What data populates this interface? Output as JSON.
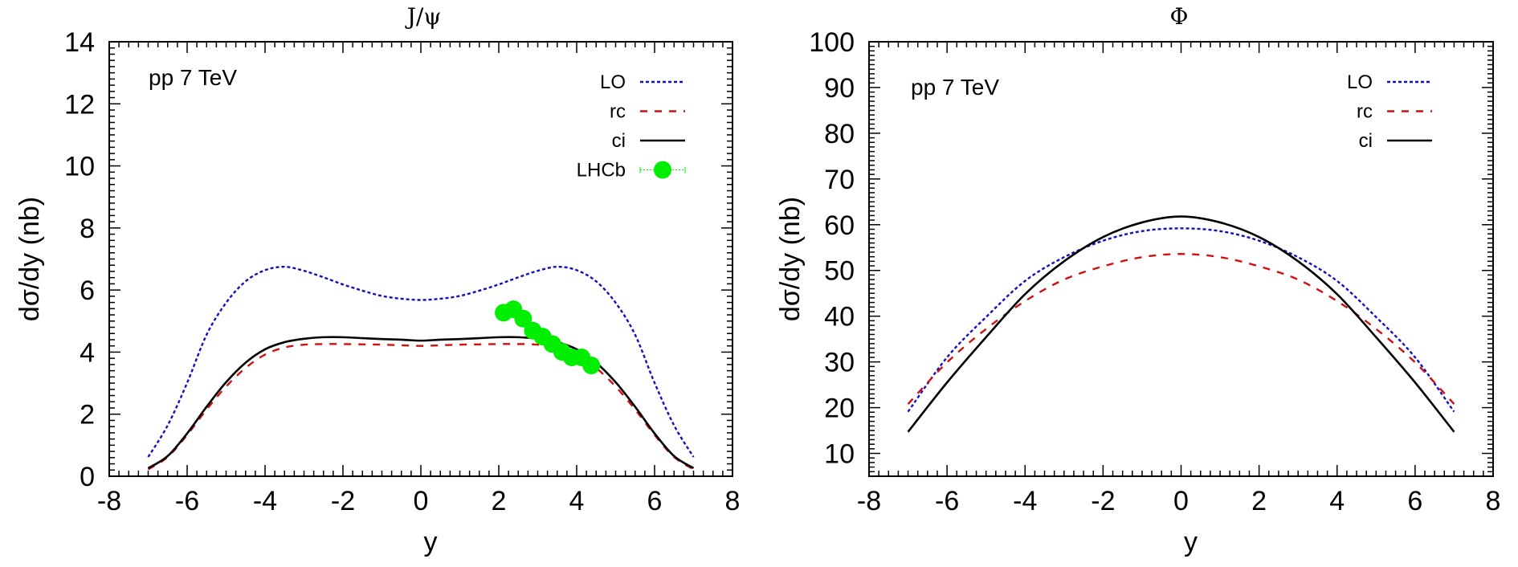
{
  "chart_data": [
    {
      "type": "line",
      "title": "J/ψ",
      "annotation": "pp 7 TeV",
      "xlabel": "y",
      "ylabel": "dσ/dy (nb)",
      "xlim": [
        -8,
        8
      ],
      "ylim": [
        0,
        14
      ],
      "xticks": [
        "-8",
        "-6",
        "-4",
        "-2",
        "0",
        "2",
        "4",
        "6",
        "8"
      ],
      "yticks": [
        "0",
        "2",
        "4",
        "6",
        "8",
        "10",
        "12",
        "14"
      ],
      "grid": false,
      "legend_position": "top-right",
      "x": [
        -7,
        -6.5,
        -6,
        -5.5,
        -5,
        -4.5,
        -4,
        -3.5,
        -3,
        -2.5,
        -2,
        -1.5,
        -1,
        -0.5,
        0,
        0.5,
        1,
        1.5,
        2,
        2.5,
        3,
        3.5,
        4,
        4.5,
        5,
        5.5,
        6,
        6.5,
        7
      ],
      "series": [
        {
          "name": "LO",
          "style": "dotted",
          "color": "#1010c0",
          "values": [
            0.62,
            1.64,
            3.01,
            4.56,
            5.59,
            6.28,
            6.64,
            6.75,
            6.62,
            6.41,
            6.18,
            5.98,
            5.81,
            5.72,
            5.68,
            5.72,
            5.81,
            5.98,
            6.18,
            6.41,
            6.62,
            6.75,
            6.64,
            6.28,
            5.59,
            4.56,
            3.01,
            1.64,
            0.62
          ]
        },
        {
          "name": "rc",
          "style": "dashed",
          "color": "#d01010",
          "values": [
            0.22,
            0.62,
            1.33,
            2.15,
            2.89,
            3.49,
            3.92,
            4.15,
            4.24,
            4.26,
            4.26,
            4.25,
            4.24,
            4.22,
            4.2,
            4.22,
            4.24,
            4.25,
            4.26,
            4.26,
            4.24,
            4.15,
            3.92,
            3.49,
            2.89,
            2.15,
            1.33,
            0.62,
            0.22
          ]
        },
        {
          "name": "ci",
          "style": "solid",
          "color": "#000000",
          "values": [
            0.26,
            0.65,
            1.38,
            2.24,
            3.03,
            3.66,
            4.09,
            4.32,
            4.43,
            4.48,
            4.48,
            4.45,
            4.42,
            4.4,
            4.37,
            4.4,
            4.42,
            4.45,
            4.48,
            4.48,
            4.43,
            4.32,
            4.09,
            3.66,
            3.03,
            2.24,
            1.38,
            0.65,
            0.26
          ]
        }
      ],
      "points": {
        "name": "LHCb",
        "color": "#00ee00",
        "x": [
          2.125,
          2.375,
          2.625,
          2.875,
          3.125,
          3.375,
          3.625,
          3.875,
          4.125,
          4.375
        ],
        "y": [
          5.27,
          5.38,
          5.08,
          4.69,
          4.5,
          4.26,
          4.01,
          3.83,
          3.83,
          3.57
        ]
      }
    },
    {
      "type": "line",
      "title": "Φ",
      "annotation": "pp 7 TeV",
      "xlabel": "y",
      "ylabel": "dσ/dy (nb)",
      "xlim": [
        -8,
        8
      ],
      "ylim": [
        5,
        100
      ],
      "xticks": [
        "-8",
        "-6",
        "-4",
        "-2",
        "0",
        "2",
        "4",
        "6",
        "8"
      ],
      "yticks": [
        "10",
        "20",
        "30",
        "40",
        "50",
        "60",
        "70",
        "80",
        "90",
        "100"
      ],
      "grid": false,
      "legend_position": "top-right",
      "x": [
        -7,
        -6,
        -5,
        -4,
        -3,
        -2,
        -1,
        0,
        1,
        2,
        3,
        4,
        5,
        6,
        7
      ],
      "series": [
        {
          "name": "LO",
          "style": "dotted",
          "color": "#1010c0",
          "values": [
            19.1,
            31.0,
            39.8,
            47.7,
            52.9,
            56.5,
            58.6,
            59.2,
            58.6,
            56.5,
            52.9,
            47.7,
            39.8,
            31.0,
            19.1
          ]
        },
        {
          "name": "rc",
          "style": "dashed",
          "color": "#d01010",
          "values": [
            20.8,
            29.9,
            37.2,
            43.3,
            48.0,
            50.9,
            52.9,
            53.6,
            52.9,
            50.9,
            48.0,
            43.3,
            37.2,
            29.9,
            20.8
          ]
        },
        {
          "name": "ci",
          "style": "solid",
          "color": "#000000",
          "values": [
            14.7,
            25.5,
            35.4,
            44.8,
            52.0,
            57.3,
            60.5,
            61.8,
            60.5,
            57.3,
            52.0,
            44.8,
            35.4,
            25.5,
            14.7
          ]
        }
      ]
    }
  ]
}
